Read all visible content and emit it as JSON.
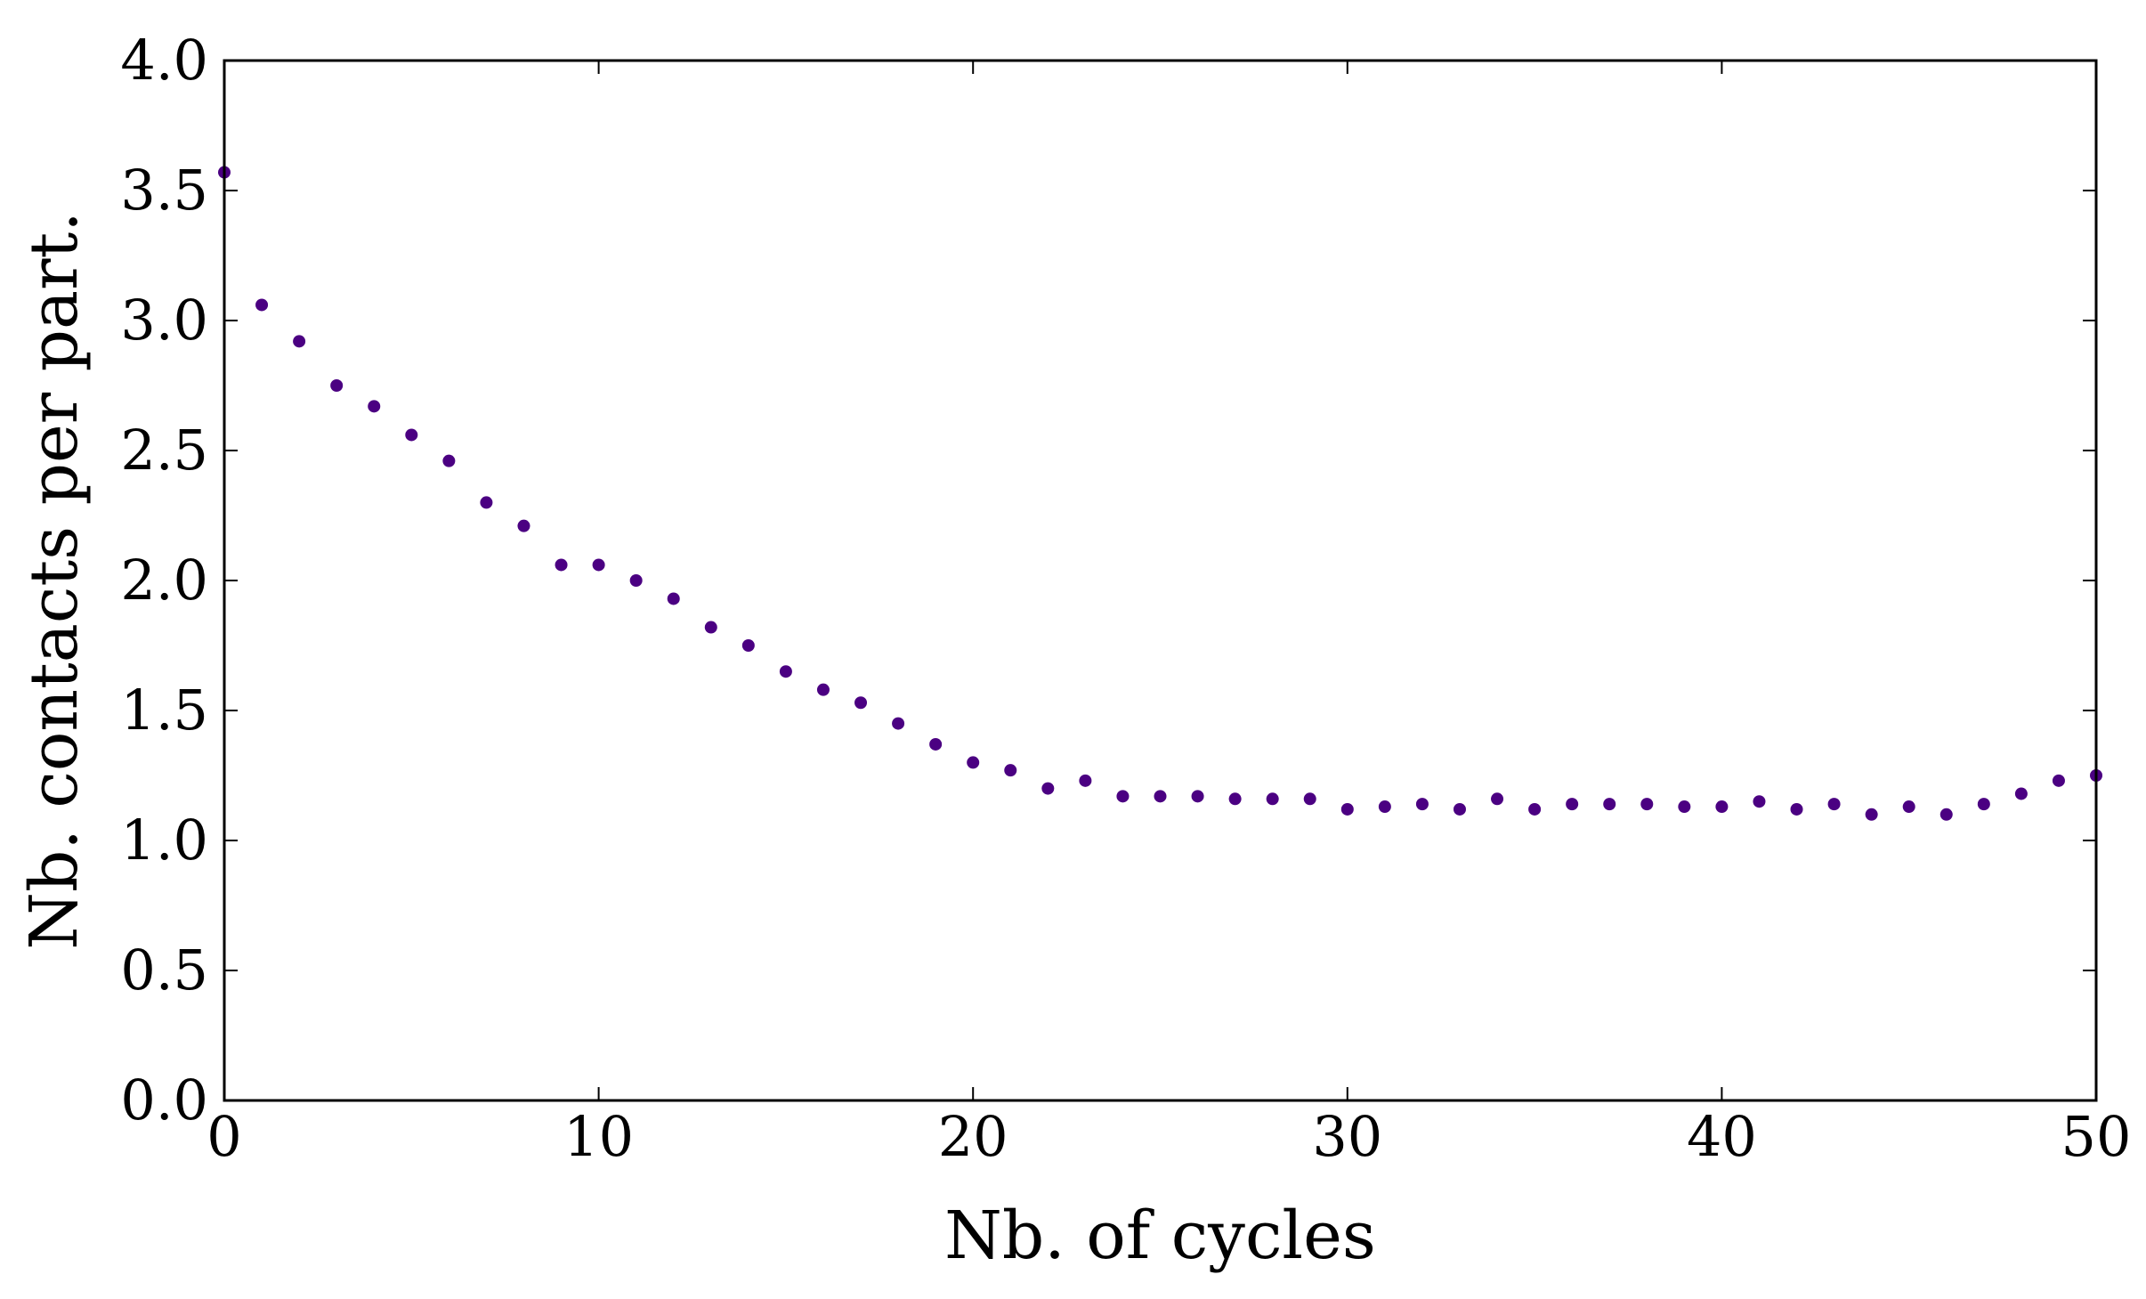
{
  "chart_data": {
    "type": "scatter",
    "title": "",
    "xlabel": "Nb. of cycles",
    "ylabel": "Nb. contacts per part.",
    "xlim": [
      0,
      50
    ],
    "ylim": [
      0.0,
      4.0
    ],
    "xticks": [
      "0",
      "10",
      "20",
      "30",
      "40",
      "50"
    ],
    "yticks": [
      "0.0",
      "0.5",
      "1.0",
      "1.5",
      "2.0",
      "2.5",
      "3.0",
      "3.5",
      "4.0"
    ],
    "xtick_values": [
      0,
      10,
      20,
      30,
      40,
      50
    ],
    "ytick_values": [
      0.0,
      0.5,
      1.0,
      1.5,
      2.0,
      2.5,
      3.0,
      3.5,
      4.0
    ],
    "grid": false,
    "legend": "none",
    "marker_color": "#4b0082",
    "series": [
      {
        "x": [
          0,
          1,
          2,
          3,
          4,
          5,
          6,
          7,
          8,
          9,
          10,
          11,
          12,
          13,
          14,
          15,
          16,
          17,
          18,
          19,
          20,
          21,
          22,
          23,
          24,
          25,
          26,
          27,
          28,
          29,
          30,
          31,
          32,
          33,
          34,
          35,
          36,
          37,
          38,
          39,
          40,
          41,
          42,
          43,
          44,
          45,
          46,
          47,
          48,
          49,
          50
        ],
        "y": [
          3.57,
          3.06,
          2.92,
          2.75,
          2.67,
          2.56,
          2.46,
          2.3,
          2.21,
          2.06,
          2.06,
          2.0,
          1.93,
          1.82,
          1.75,
          1.65,
          1.58,
          1.53,
          1.45,
          1.37,
          1.3,
          1.27,
          1.2,
          1.23,
          1.17,
          1.17,
          1.17,
          1.16,
          1.16,
          1.16,
          1.12,
          1.13,
          1.14,
          1.12,
          1.16,
          1.12,
          1.14,
          1.14,
          1.14,
          1.13,
          1.13,
          1.15,
          1.12,
          1.14,
          1.1,
          1.13,
          1.1,
          1.14,
          1.18,
          1.23,
          1.25
        ]
      }
    ]
  }
}
